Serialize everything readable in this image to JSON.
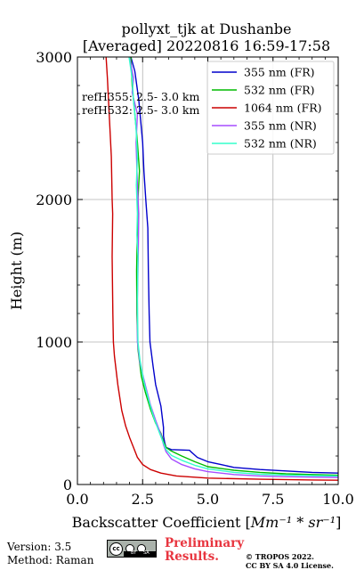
{
  "chart_data": {
    "type": "line",
    "title": [
      "pollyxt_tjk at Dushanbe",
      "[Averaged] 20220816 16:59-17:58"
    ],
    "xlabel_prefix": "Backscatter Coefficient [",
    "xlabel_suffix": "]",
    "xlabel_math": "Mm⁻¹ * sr⁻¹",
    "ylabel": "Height (m)",
    "xlim": [
      0,
      10
    ],
    "ylim": [
      0,
      3000
    ],
    "xticks": [
      0,
      2.5,
      5,
      7.5,
      10
    ],
    "xtick_labels": [
      "0.0",
      "2.5",
      "5.0",
      "7.5",
      "10.0"
    ],
    "yticks": [
      0,
      1000,
      2000,
      3000
    ],
    "ytick_labels": [
      "0",
      "1000",
      "2000",
      "3000"
    ],
    "grid": true,
    "legend_position": "top-right",
    "annotations": [
      "refH355: 2.5- 3.0 km",
      "refH532: 2.5- 3.0 km"
    ],
    "series": [
      {
        "name": "355 nm (FR)",
        "color": "#0000cc",
        "points": [
          [
            10,
            80
          ],
          [
            9,
            85
          ],
          [
            8,
            95
          ],
          [
            7,
            105
          ],
          [
            6,
            120
          ],
          [
            5.5,
            140
          ],
          [
            5,
            160
          ],
          [
            4.6,
            190
          ],
          [
            4.35,
            230
          ],
          [
            4.3,
            240
          ],
          [
            3.6,
            245
          ],
          [
            3.4,
            260
          ],
          [
            3.35,
            290
          ],
          [
            3.3,
            340
          ],
          [
            3.3,
            400
          ],
          [
            3.2,
            550
          ],
          [
            3.0,
            700
          ],
          [
            2.9,
            830
          ],
          [
            2.78,
            1000
          ],
          [
            2.75,
            1200
          ],
          [
            2.72,
            1500
          ],
          [
            2.7,
            1800
          ],
          [
            2.62,
            2000
          ],
          [
            2.55,
            2200
          ],
          [
            2.5,
            2400
          ],
          [
            2.35,
            2700
          ],
          [
            2.2,
            2900
          ],
          [
            2.05,
            3000
          ]
        ]
      },
      {
        "name": "532 nm (FR)",
        "color": "#00bb00",
        "points": [
          [
            10,
            65
          ],
          [
            9,
            70
          ],
          [
            8,
            75
          ],
          [
            7,
            85
          ],
          [
            6,
            100
          ],
          [
            5,
            125
          ],
          [
            4.5,
            160
          ],
          [
            4,
            200
          ],
          [
            3.6,
            235
          ],
          [
            3.4,
            260
          ],
          [
            3.3,
            300
          ],
          [
            3.2,
            360
          ],
          [
            3.0,
            430
          ],
          [
            2.8,
            530
          ],
          [
            2.6,
            650
          ],
          [
            2.45,
            760
          ],
          [
            2.32,
            950
          ],
          [
            2.28,
            1200
          ],
          [
            2.27,
            1500
          ],
          [
            2.3,
            1800
          ],
          [
            2.32,
            2000
          ],
          [
            2.38,
            2200
          ],
          [
            2.3,
            2400
          ],
          [
            2.2,
            2600
          ],
          [
            2.1,
            2800
          ],
          [
            2.05,
            3000
          ]
        ]
      },
      {
        "name": "1064 nm (FR)",
        "color": "#cc0000",
        "points": [
          [
            10,
            30
          ],
          [
            9,
            32
          ],
          [
            7,
            37
          ],
          [
            5,
            45
          ],
          [
            3.8,
            60
          ],
          [
            3.2,
            80
          ],
          [
            2.8,
            105
          ],
          [
            2.5,
            140
          ],
          [
            2.3,
            190
          ],
          [
            2.15,
            260
          ],
          [
            2.0,
            330
          ],
          [
            1.85,
            410
          ],
          [
            1.7,
            520
          ],
          [
            1.55,
            700
          ],
          [
            1.42,
            900
          ],
          [
            1.38,
            1000
          ],
          [
            1.36,
            1200
          ],
          [
            1.33,
            1600
          ],
          [
            1.35,
            1900
          ],
          [
            1.33,
            2000
          ],
          [
            1.3,
            2300
          ],
          [
            1.22,
            2600
          ],
          [
            1.15,
            2850
          ],
          [
            1.1,
            3000
          ]
        ]
      },
      {
        "name": "355 nm (NR)",
        "color": "#a64dff",
        "points": [
          [
            10,
            50
          ],
          [
            9,
            52
          ],
          [
            8,
            55
          ],
          [
            7,
            60
          ],
          [
            6,
            70
          ],
          [
            5,
            90
          ],
          [
            4.5,
            110
          ],
          [
            4,
            140
          ],
          [
            3.6,
            180
          ],
          [
            3.4,
            230
          ],
          [
            3.3,
            280
          ],
          [
            3.2,
            350
          ],
          [
            3.0,
            450
          ],
          [
            2.8,
            560
          ],
          [
            2.6,
            700
          ],
          [
            2.4,
            850
          ],
          [
            2.3,
            1000
          ],
          [
            2.3,
            1300
          ],
          [
            2.33,
            1600
          ],
          [
            2.35,
            1900
          ],
          [
            2.3,
            2100
          ],
          [
            2.25,
            2400
          ],
          [
            2.3,
            2600
          ],
          [
            2.1,
            2750
          ],
          [
            2.15,
            2850
          ],
          [
            2.0,
            3000
          ]
        ]
      },
      {
        "name": "532 nm (NR)",
        "color": "#33ffcc",
        "points": [
          [
            10,
            60
          ],
          [
            9,
            62
          ],
          [
            8,
            66
          ],
          [
            7,
            72
          ],
          [
            6,
            85
          ],
          [
            5,
            110
          ],
          [
            4.5,
            135
          ],
          [
            4,
            170
          ],
          [
            3.6,
            205
          ],
          [
            3.4,
            245
          ],
          [
            3.3,
            290
          ],
          [
            3.15,
            360
          ],
          [
            2.95,
            460
          ],
          [
            2.75,
            580
          ],
          [
            2.55,
            720
          ],
          [
            2.4,
            870
          ],
          [
            2.32,
            1000
          ],
          [
            2.3,
            1300
          ],
          [
            2.32,
            1600
          ],
          [
            2.28,
            1750
          ],
          [
            2.3,
            1900
          ],
          [
            2.26,
            2100
          ],
          [
            2.3,
            2300
          ],
          [
            2.25,
            2500
          ],
          [
            2.15,
            2700
          ],
          [
            2.1,
            2850
          ],
          [
            1.98,
            3000
          ]
        ]
      }
    ]
  },
  "footer": {
    "version": "Version: 3.5",
    "method": "Method: Raman",
    "preliminary": [
      "Preliminary",
      "Results."
    ],
    "copyright": [
      "© TROPOS 2022.",
      "CC BY SA 4.0 License."
    ],
    "license_badge": {
      "main_glyph": "cc",
      "sub_labels": [
        "BY",
        "SA"
      ]
    }
  }
}
